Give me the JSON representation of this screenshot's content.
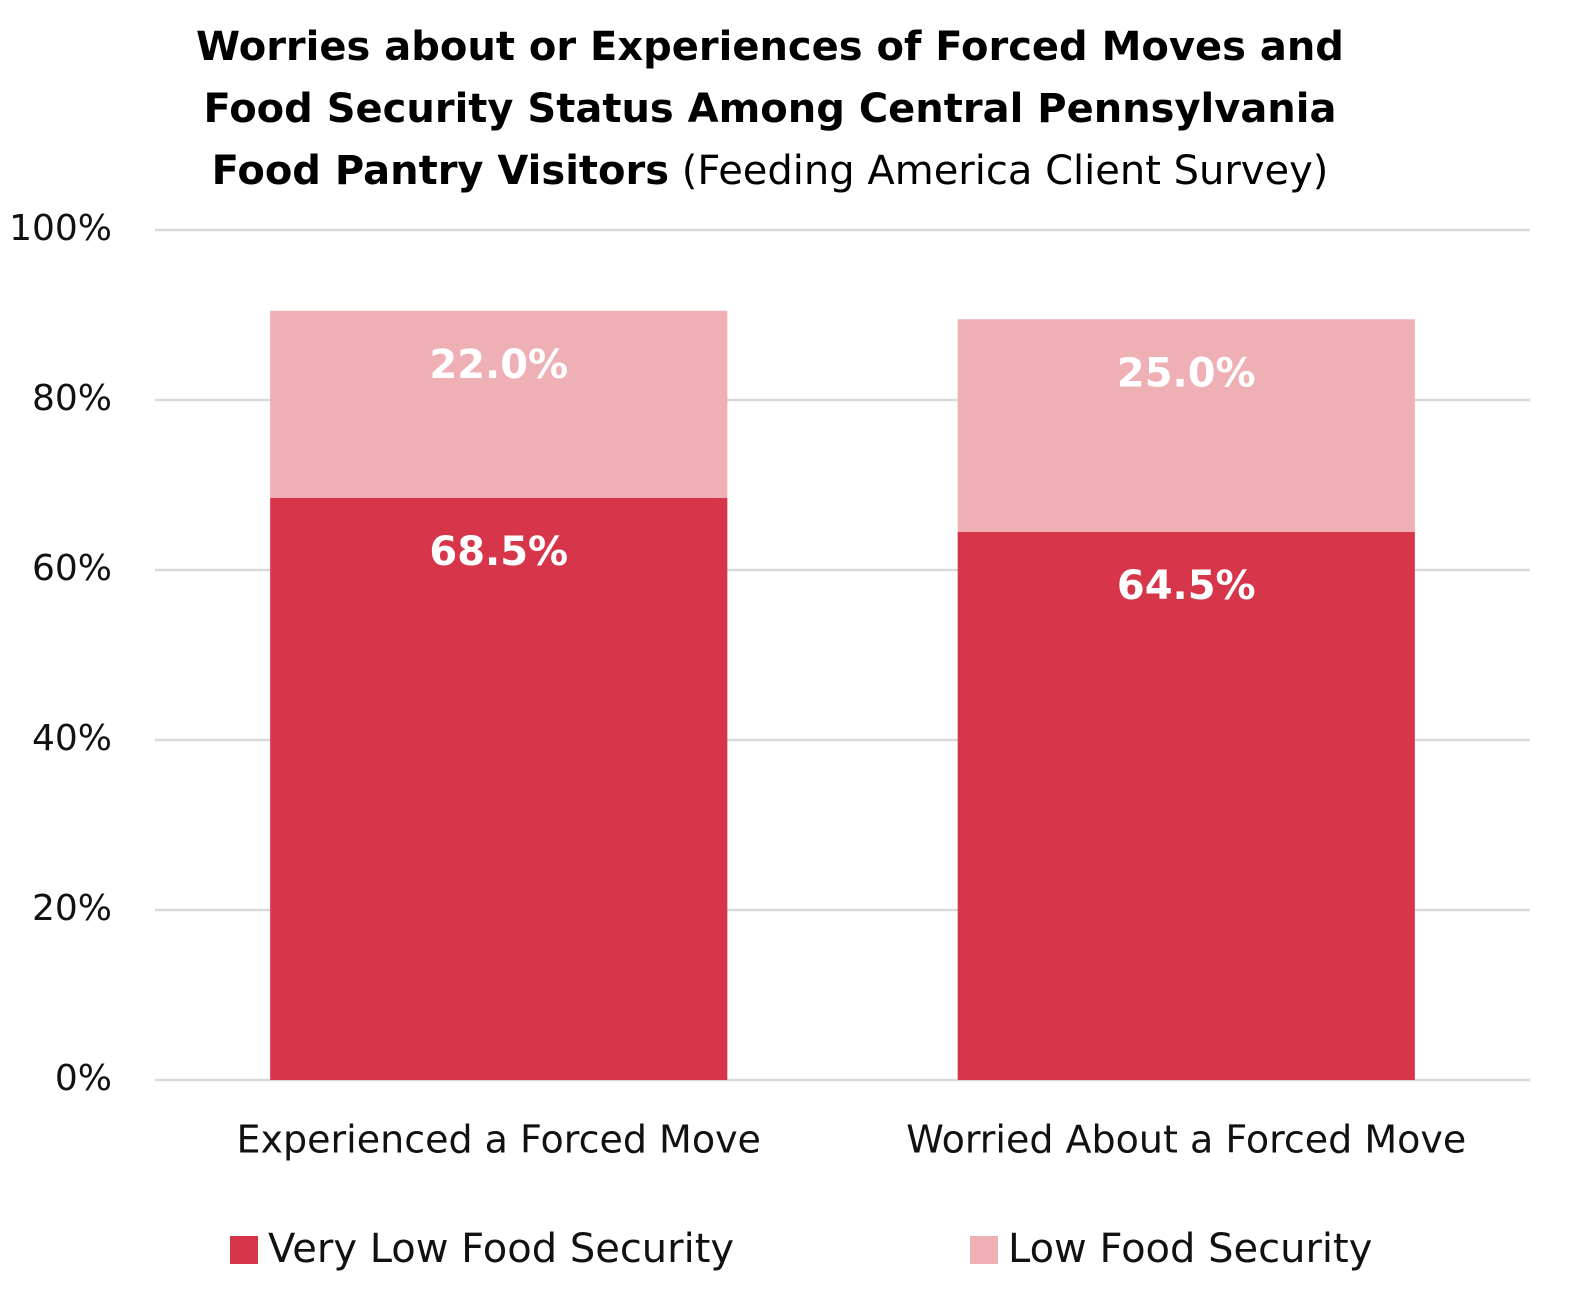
{
  "chart_data": {
    "type": "stacked_bar",
    "title": "Worries about or Experiences of Forced Moves and Food Security Status Among Central Pennsylvania Food Pantry Visitors",
    "subtitle": "(Feeding America Client Survey)",
    "categories": [
      "Experienced a Forced Move",
      "Worried About a Forced Move"
    ],
    "series": [
      {
        "name": "Very Low Food Security",
        "color": "#d7364a",
        "values": [
          68.5,
          64.5
        ],
        "value_labels": [
          "68.5%",
          "64.5%"
        ]
      },
      {
        "name": "Low Food Security",
        "color": "#eeafb5",
        "values": [
          22.0,
          25.0
        ],
        "value_labels": [
          "22.0%",
          "25.0%"
        ]
      }
    ],
    "ylim": [
      0,
      100
    ],
    "yticks": [
      {
        "value": 0,
        "label": "0%"
      },
      {
        "value": 20,
        "label": "20%"
      },
      {
        "value": 40,
        "label": "40%"
      },
      {
        "value": 60,
        "label": "60%"
      },
      {
        "value": 80,
        "label": "80%"
      },
      {
        "value": 100,
        "label": "100%"
      }
    ],
    "grid": true
  }
}
